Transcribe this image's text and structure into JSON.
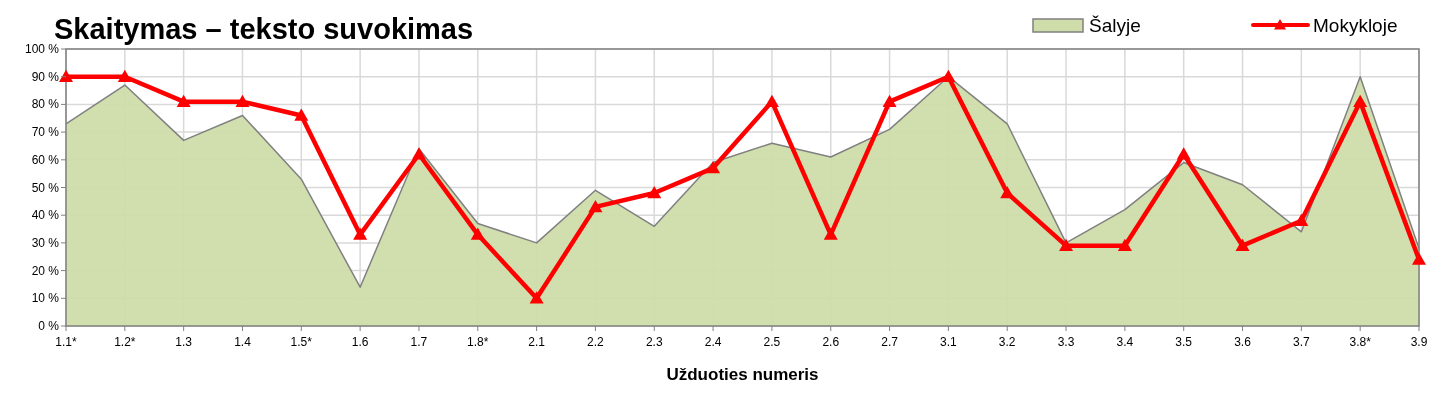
{
  "chart_data": {
    "type": "area",
    "title": "Skaitymas – teksto suvokimas",
    "xlabel": "Užduoties numeris",
    "categories": [
      "1.1*",
      "1.2*",
      "1.3",
      "1.4",
      "1.5*",
      "1.6",
      "1.7",
      "1.8*",
      "2.1",
      "2.2",
      "2.3",
      "2.4",
      "2.5",
      "2.6",
      "2.7",
      "3.1",
      "3.2",
      "3.3",
      "3.4",
      "3.5",
      "3.6",
      "3.7",
      "3.8*",
      "3.9"
    ],
    "series": [
      {
        "name": "Šalyje",
        "color": "#cfddab",
        "values": [
          73,
          87,
          67,
          76,
          53,
          14,
          64,
          37,
          30,
          49,
          36,
          59,
          66,
          61,
          71,
          90,
          73,
          30,
          42,
          59,
          51,
          34,
          90,
          28
        ]
      },
      {
        "name": "Mokykloje",
        "type": "line",
        "color": "#ff0000",
        "marker": "triangle",
        "values": [
          90,
          90,
          81,
          81,
          76,
          33,
          62,
          33,
          10,
          43,
          48,
          57,
          81,
          33,
          81,
          90,
          48,
          29,
          29,
          62,
          29,
          38,
          81,
          24
        ]
      }
    ],
    "ylim": [
      0,
      100
    ],
    "yticks": [
      {
        "value": 0,
        "label": "0 %"
      },
      {
        "value": 10,
        "label": "10 %"
      },
      {
        "value": 20,
        "label": "20 %"
      },
      {
        "value": 30,
        "label": "30 %"
      },
      {
        "value": 40,
        "label": "40 %"
      },
      {
        "value": 50,
        "label": "50 %"
      },
      {
        "value": 60,
        "label": "60 %"
      },
      {
        "value": 70,
        "label": "70 %"
      },
      {
        "value": 80,
        "label": "80 %"
      },
      {
        "value": 90,
        "label": "90 %"
      },
      {
        "value": 100,
        "label": "100 %"
      }
    ],
    "grid": true,
    "legend": "top right"
  }
}
